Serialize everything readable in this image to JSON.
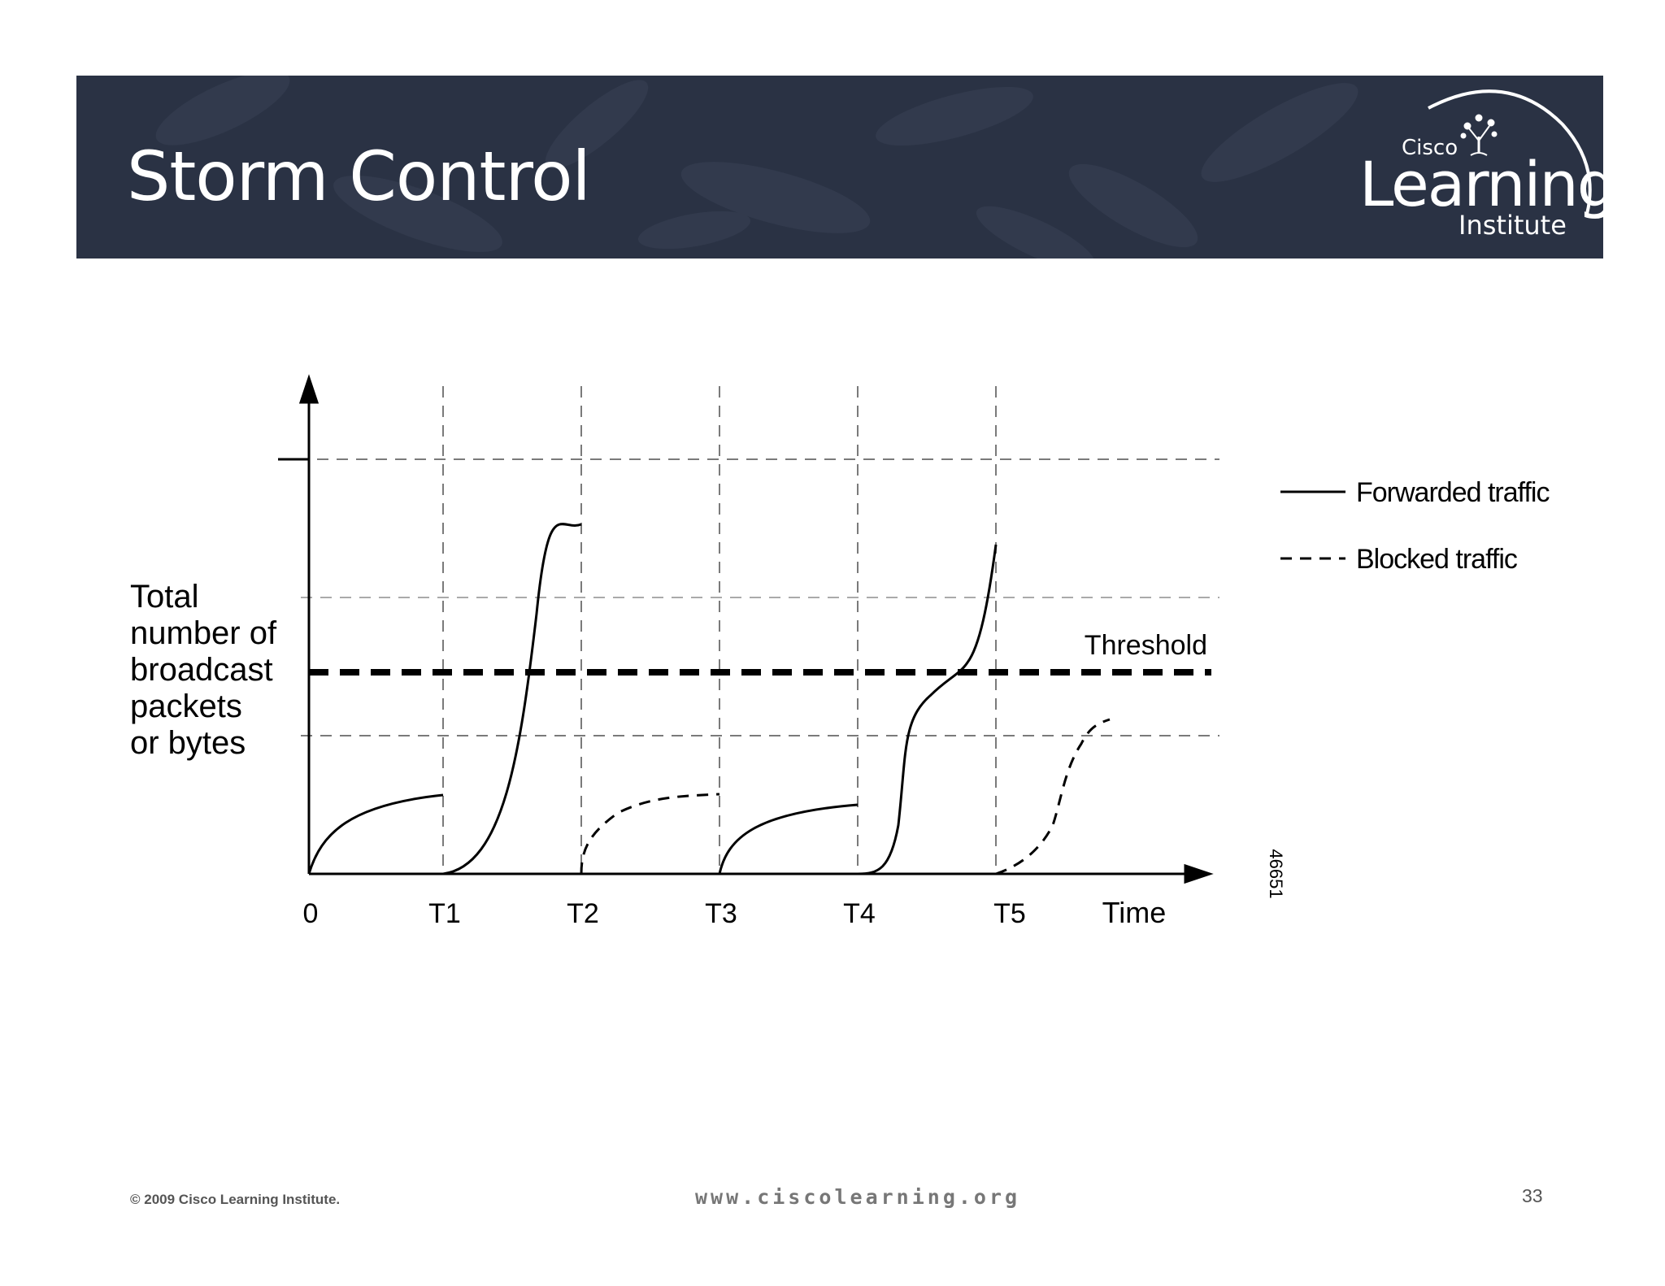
{
  "slide": {
    "title": "Storm Control",
    "logo": {
      "brand_small": "Cisco",
      "brand_main": "Learning",
      "brand_sub": "Institute",
      "icon": "tree-icon"
    }
  },
  "diagram": {
    "y_axis_label": [
      "Total",
      "number of",
      "broadcast",
      "packets",
      "or bytes"
    ],
    "x_ticks": [
      "0",
      "T1",
      "T2",
      "T3",
      "T4",
      "T5"
    ],
    "x_axis_label": "Time",
    "threshold_label": "Threshold",
    "legend": [
      {
        "label": "Forwarded traffic",
        "style": "solid"
      },
      {
        "label": "Blocked traffic",
        "style": "dashed"
      }
    ],
    "figure_id": "46651"
  },
  "footer": {
    "copyright": "© 2009 Cisco Learning Institute.",
    "url": "www.ciscolearning.org",
    "page_number": "33"
  },
  "colors": {
    "header_bg": "#2a3244",
    "title_text": "#ffffff",
    "line": "#000000",
    "grid": "#7a7a7a"
  }
}
